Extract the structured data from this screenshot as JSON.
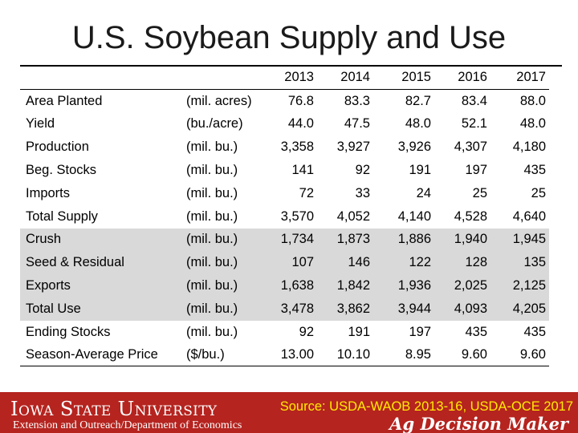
{
  "title": "U.S. Soybean Supply and Use",
  "years": [
    "2013",
    "2014",
    "2015",
    "2016",
    "2017"
  ],
  "rows": [
    {
      "label": "Area Planted",
      "unit": "(mil. acres)",
      "values": [
        "76.8",
        "83.3",
        "82.7",
        "83.4",
        "88.0"
      ],
      "shaded": false
    },
    {
      "label": "Yield",
      "unit": "(bu./acre)",
      "values": [
        "44.0",
        "47.5",
        "48.0",
        "52.1",
        "48.0"
      ],
      "shaded": false
    },
    {
      "label": "Production",
      "unit": "(mil. bu.)",
      "values": [
        "3,358",
        "3,927",
        "3,926",
        "4,307",
        "4,180"
      ],
      "shaded": false
    },
    {
      "label": "Beg. Stocks",
      "unit": "(mil. bu.)",
      "values": [
        "141",
        "92",
        "191",
        "197",
        "435"
      ],
      "shaded": false
    },
    {
      "label": "Imports",
      "unit": "(mil. bu.)",
      "values": [
        "72",
        "33",
        "24",
        "25",
        "25"
      ],
      "shaded": false
    },
    {
      "label": "Total Supply",
      "unit": "(mil. bu.)",
      "values": [
        "3,570",
        "4,052",
        "4,140",
        "4,528",
        "4,640"
      ],
      "shaded": false
    },
    {
      "label": "Crush",
      "unit": "(mil. bu.)",
      "values": [
        "1,734",
        "1,873",
        "1,886",
        "1,940",
        "1,945"
      ],
      "shaded": true
    },
    {
      "label": "Seed & Residual",
      "unit": "(mil. bu.)",
      "values": [
        "107",
        "146",
        "122",
        "128",
        "135"
      ],
      "shaded": true
    },
    {
      "label": "Exports",
      "unit": "(mil. bu.)",
      "values": [
        "1,638",
        "1,842",
        "1,936",
        "2,025",
        "2,125"
      ],
      "shaded": true
    },
    {
      "label": "Total Use",
      "unit": "(mil. bu.)",
      "values": [
        "3,478",
        "3,862",
        "3,944",
        "4,093",
        "4,205"
      ],
      "shaded": true
    },
    {
      "label": "Ending Stocks",
      "unit": "(mil. bu.)",
      "values": [
        "92",
        "191",
        "197",
        "435",
        "435"
      ],
      "shaded": false
    },
    {
      "label": "Season-Average Price",
      "unit": "($/bu.)",
      "values": [
        "13.00",
        "10.10",
        "8.95",
        "9.60",
        "9.60"
      ],
      "shaded": false
    }
  ],
  "footer": {
    "university": "Iowa State University",
    "department": "Extension and Outreach/Department of Economics",
    "source": "Source: USDA-WAOB 2013-16, USDA-OCE 2017",
    "brand": "Ag Decision Maker"
  },
  "colors": {
    "footer_bg": "#b5241f",
    "source_text": "#ffeb00",
    "shaded_row": "#d9d9d9"
  }
}
